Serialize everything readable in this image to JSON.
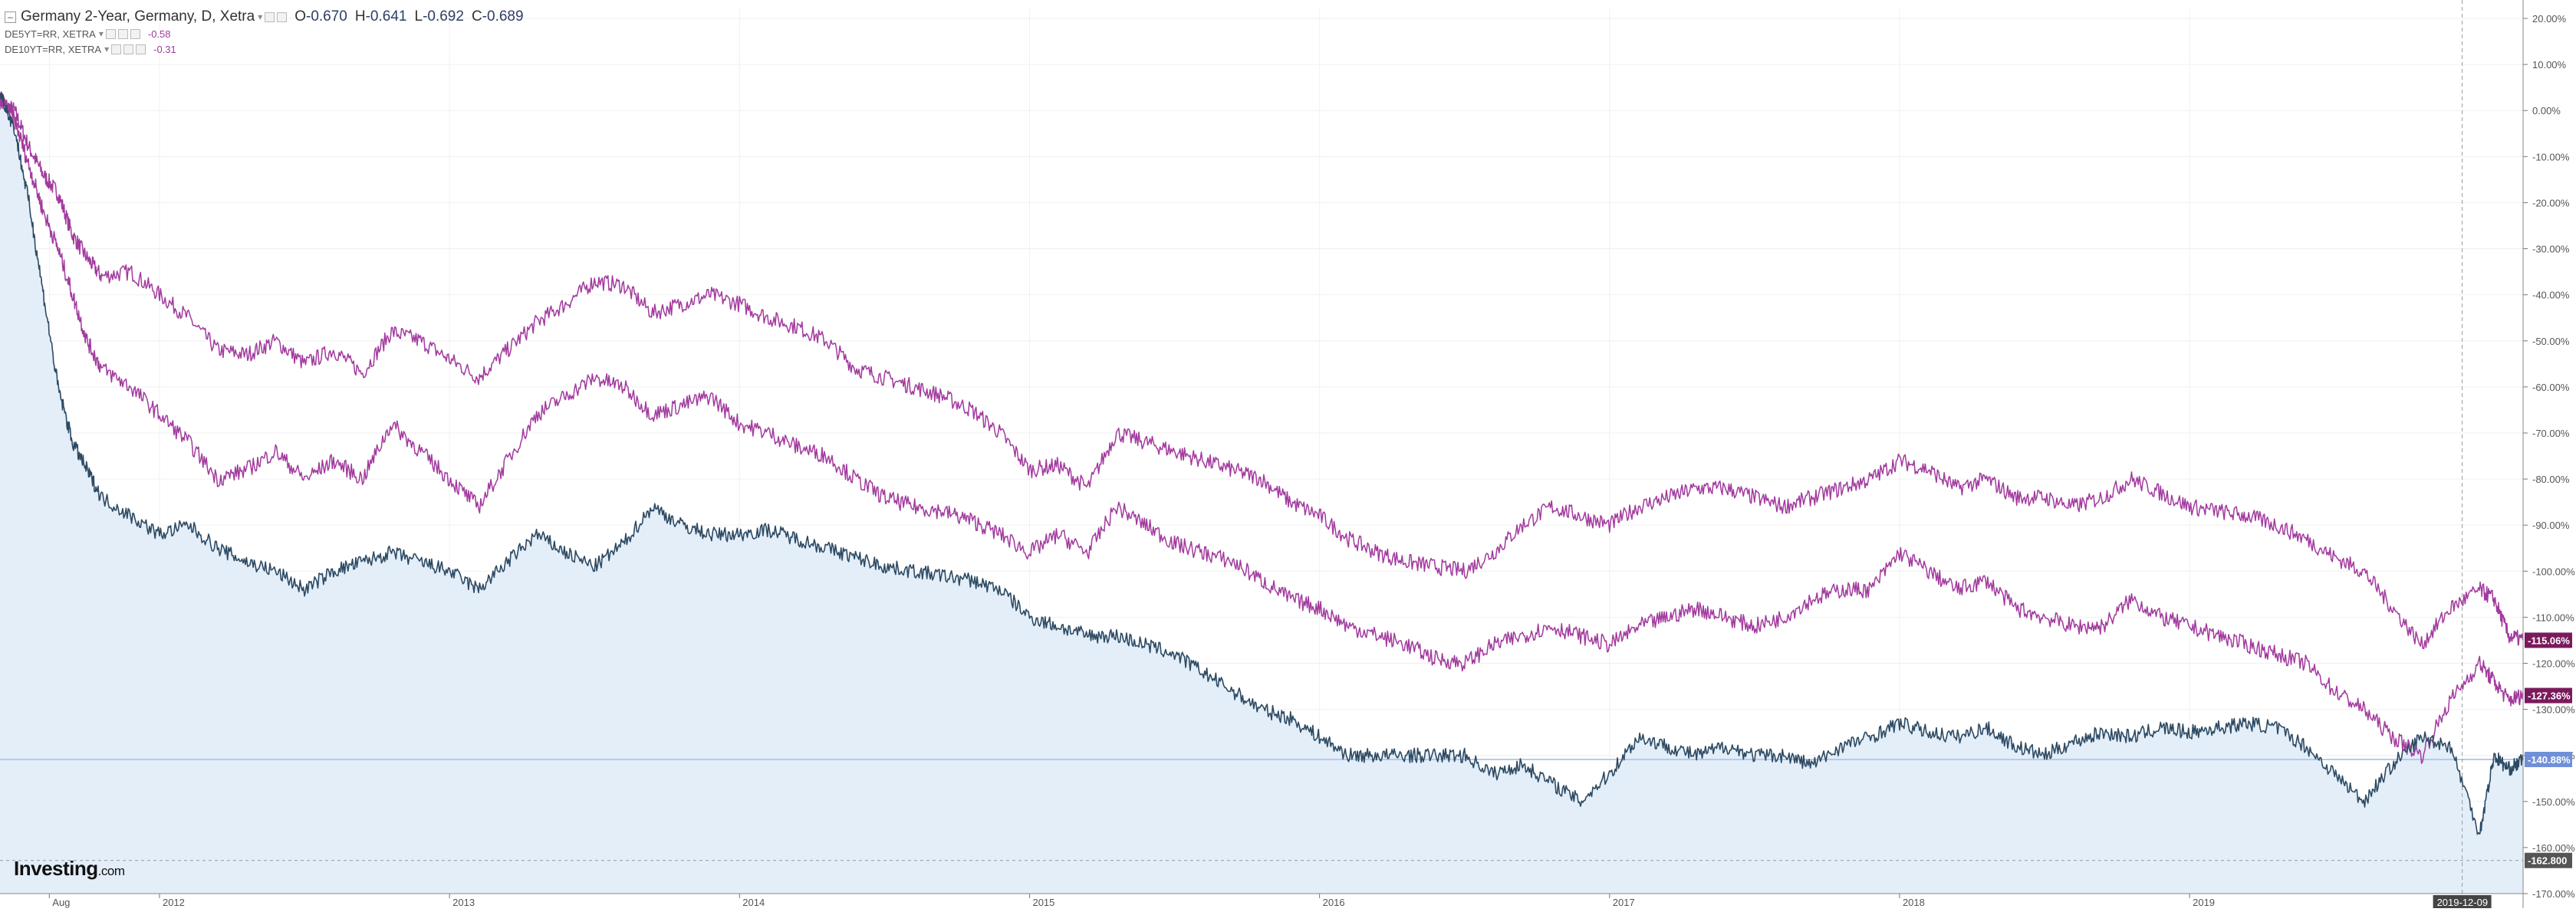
{
  "legend": {
    "title": "Germany 2-Year, Germany, D, Xetra",
    "ohlc": [
      {
        "label": "O",
        "value": "-0.670"
      },
      {
        "label": "H",
        "value": "-0.641"
      },
      {
        "label": "L",
        "value": "-0.692"
      },
      {
        "label": "C",
        "value": "-0.689"
      }
    ],
    "overlays": [
      {
        "name": "DE5YT=RR, XETRA",
        "value": "-0.58"
      },
      {
        "name": "DE10YT=RR, XETRA",
        "value": "-0.31"
      }
    ]
  },
  "logo": {
    "brand": "Investing",
    "suffix": ".com"
  },
  "colors": {
    "primary_line": "#2d4a63",
    "area_fill": "#e3eef9",
    "overlay_line": "#a23a9e",
    "overlay_tag": "#7a1a5c",
    "current_tag": "#6f8fd8",
    "current_line": "#b7c9ec",
    "low_tag": "#555555",
    "crosshair_tag": "#444444",
    "grid": "#f0f0f0"
  },
  "chart_data": {
    "type": "line",
    "ylim": [
      -170,
      22
    ],
    "xlim": [
      2011.45,
      2020.15
    ],
    "y_ticks": [
      20,
      10,
      0,
      -10,
      -20,
      -30,
      -40,
      -50,
      -60,
      -70,
      -80,
      -90,
      -100,
      -110,
      -120,
      -130,
      -140,
      -150,
      -160,
      -170
    ],
    "y_tick_labels": [
      "20.00%",
      "10.00%",
      "0.00%",
      "-10.00%",
      "-20.00%",
      "-30.00%",
      "-40.00%",
      "-50.00%",
      "-60.00%",
      "-70.00%",
      "-80.00%",
      "-90.00%",
      "-100.00%",
      "-110.00%",
      "-120.00%",
      "-130.00%",
      "-140.00%",
      "-150.00%",
      "-160.00%",
      "-170.00%"
    ],
    "x_ticks": [
      {
        "value": 2011.62,
        "label": "Aug"
      },
      {
        "value": 2012.0,
        "label": "2012"
      },
      {
        "value": 2013.0,
        "label": "2013"
      },
      {
        "value": 2014.0,
        "label": "2014"
      },
      {
        "value": 2015.0,
        "label": "2015"
      },
      {
        "value": 2016.0,
        "label": "2016"
      },
      {
        "value": 2017.0,
        "label": "2017"
      },
      {
        "value": 2018.0,
        "label": "2018"
      },
      {
        "value": 2019.0,
        "label": "2019"
      }
    ],
    "crosshair": {
      "x": 2019.94,
      "label": "2019-12-09"
    },
    "current_level": {
      "y": -140.88,
      "label": "-140.88%"
    },
    "low_level": {
      "y": -162.8,
      "label": "-162.800"
    },
    "series": [
      {
        "name": "DE10YT=RR, XETRA",
        "end_label": "-115.06%",
        "x": [
          2011.45,
          2011.5,
          2011.55,
          2011.6,
          2011.65,
          2011.7,
          2011.75,
          2011.8,
          2011.9,
          2012.0,
          2012.1,
          2012.2,
          2012.3,
          2012.4,
          2012.5,
          2012.6,
          2012.7,
          2012.8,
          2012.9,
          2013.0,
          2013.1,
          2013.2,
          2013.3,
          2013.4,
          2013.5,
          2013.6,
          2013.7,
          2013.8,
          2013.9,
          2014.0,
          2014.1,
          2014.2,
          2014.3,
          2014.4,
          2014.5,
          2014.6,
          2014.7,
          2014.8,
          2014.9,
          2015.0,
          2015.1,
          2015.2,
          2015.3,
          2015.4,
          2015.5,
          2015.6,
          2015.7,
          2015.8,
          2015.9,
          2016.0,
          2016.1,
          2016.2,
          2016.3,
          2016.4,
          2016.5,
          2016.6,
          2016.7,
          2016.8,
          2016.9,
          2017.0,
          2017.1,
          2017.2,
          2017.3,
          2017.4,
          2017.5,
          2017.6,
          2017.7,
          2017.8,
          2017.9,
          2018.0,
          2018.1,
          2018.2,
          2018.3,
          2018.4,
          2018.5,
          2018.6,
          2018.7,
          2018.8,
          2018.9,
          2019.0,
          2019.1,
          2019.2,
          2019.3,
          2019.4,
          2019.5,
          2019.6,
          2019.7,
          2019.8,
          2019.9,
          2020.0,
          2020.05,
          2020.1,
          2020.15
        ],
        "y": [
          2,
          0,
          -8,
          -14,
          -18,
          -27,
          -32,
          -36,
          -35,
          -40,
          -45,
          -52,
          -53,
          -50,
          -55,
          -52,
          -57,
          -48,
          -50,
          -54,
          -58,
          -52,
          -46,
          -42,
          -37,
          -38,
          -44,
          -42,
          -40,
          -42,
          -45,
          -47,
          -50,
          -56,
          -58,
          -60,
          -62,
          -65,
          -70,
          -78,
          -77,
          -82,
          -70,
          -72,
          -74,
          -76,
          -78,
          -80,
          -85,
          -88,
          -93,
          -96,
          -98,
          -99,
          -100,
          -96,
          -90,
          -86,
          -88,
          -90,
          -86,
          -84,
          -82,
          -82,
          -84,
          -86,
          -84,
          -82,
          -80,
          -76,
          -78,
          -82,
          -80,
          -84,
          -84,
          -86,
          -84,
          -80,
          -83,
          -86,
          -87,
          -88,
          -90,
          -93,
          -97,
          -100,
          -108,
          -116,
          -108,
          -104,
          -106,
          -114,
          -115
        ]
      },
      {
        "name": "DE5YT=RR, XETRA",
        "end_label": "-127.36%",
        "x": [
          2011.45,
          2011.5,
          2011.55,
          2011.6,
          2011.65,
          2011.7,
          2011.75,
          2011.8,
          2011.9,
          2012.0,
          2012.1,
          2012.2,
          2012.3,
          2012.4,
          2012.5,
          2012.6,
          2012.7,
          2012.8,
          2012.9,
          2013.0,
          2013.1,
          2013.2,
          2013.3,
          2013.4,
          2013.5,
          2013.6,
          2013.7,
          2013.8,
          2013.9,
          2014.0,
          2014.1,
          2014.2,
          2014.3,
          2014.4,
          2014.5,
          2014.6,
          2014.7,
          2014.8,
          2014.9,
          2015.0,
          2015.1,
          2015.2,
          2015.3,
          2015.4,
          2015.5,
          2015.6,
          2015.7,
          2015.8,
          2015.9,
          2016.0,
          2016.1,
          2016.2,
          2016.3,
          2016.4,
          2016.5,
          2016.6,
          2016.7,
          2016.8,
          2016.9,
          2017.0,
          2017.1,
          2017.2,
          2017.3,
          2017.4,
          2017.5,
          2017.6,
          2017.7,
          2017.8,
          2017.9,
          2018.0,
          2018.1,
          2018.2,
          2018.3,
          2018.4,
          2018.5,
          2018.6,
          2018.7,
          2018.8,
          2018.9,
          2019.0,
          2019.1,
          2019.2,
          2019.3,
          2019.4,
          2019.5,
          2019.6,
          2019.7,
          2019.8,
          2019.9,
          2020.0,
          2020.05,
          2020.1,
          2020.15
        ],
        "y": [
          3,
          -2,
          -12,
          -22,
          -30,
          -40,
          -50,
          -56,
          -60,
          -66,
          -72,
          -80,
          -78,
          -74,
          -80,
          -76,
          -80,
          -68,
          -74,
          -80,
          -86,
          -76,
          -66,
          -62,
          -58,
          -60,
          -66,
          -64,
          -62,
          -68,
          -70,
          -73,
          -75,
          -80,
          -84,
          -86,
          -87,
          -89,
          -92,
          -96,
          -92,
          -96,
          -86,
          -90,
          -94,
          -96,
          -98,
          -102,
          -106,
          -108,
          -112,
          -114,
          -116,
          -119,
          -120,
          -116,
          -114,
          -112,
          -114,
          -116,
          -112,
          -110,
          -108,
          -110,
          -112,
          -110,
          -106,
          -104,
          -104,
          -96,
          -100,
          -104,
          -102,
          -108,
          -110,
          -112,
          -112,
          -106,
          -110,
          -112,
          -114,
          -116,
          -118,
          -120,
          -126,
          -130,
          -136,
          -140,
          -128,
          -120,
          -124,
          -128,
          -127
        ]
      },
      {
        "name": "Germany 2-Year",
        "end_label": "-140.88%",
        "x": [
          2011.45,
          2011.5,
          2011.55,
          2011.6,
          2011.65,
          2011.7,
          2011.75,
          2011.8,
          2011.9,
          2012.0,
          2012.1,
          2012.2,
          2012.3,
          2012.4,
          2012.5,
          2012.6,
          2012.7,
          2012.8,
          2012.9,
          2013.0,
          2013.1,
          2013.2,
          2013.3,
          2013.4,
          2013.5,
          2013.6,
          2013.7,
          2013.8,
          2013.9,
          2014.0,
          2014.1,
          2014.2,
          2014.3,
          2014.4,
          2014.5,
          2014.6,
          2014.7,
          2014.8,
          2014.9,
          2015.0,
          2015.1,
          2015.2,
          2015.3,
          2015.4,
          2015.5,
          2015.6,
          2015.7,
          2015.8,
          2015.9,
          2016.0,
          2016.1,
          2016.2,
          2016.3,
          2016.4,
          2016.5,
          2016.6,
          2016.7,
          2016.8,
          2016.9,
          2017.0,
          2017.1,
          2017.2,
          2017.3,
          2017.4,
          2017.5,
          2017.6,
          2017.7,
          2017.8,
          2017.9,
          2018.0,
          2018.1,
          2018.2,
          2018.3,
          2018.4,
          2018.5,
          2018.6,
          2018.7,
          2018.8,
          2018.9,
          2019.0,
          2019.1,
          2019.2,
          2019.3,
          2019.4,
          2019.5,
          2019.6,
          2019.7,
          2019.8,
          2019.9,
          2020.0,
          2020.05,
          2020.1,
          2020.15
        ],
        "y": [
          4,
          -4,
          -20,
          -40,
          -60,
          -72,
          -78,
          -84,
          -88,
          -92,
          -90,
          -95,
          -98,
          -100,
          -104,
          -100,
          -98,
          -96,
          -98,
          -100,
          -104,
          -98,
          -92,
          -96,
          -99,
          -94,
          -86,
          -90,
          -92,
          -92,
          -91,
          -93,
          -95,
          -97,
          -99,
          -100,
          -101,
          -102,
          -104,
          -110,
          -112,
          -114,
          -114,
          -116,
          -118,
          -122,
          -126,
          -130,
          -132,
          -136,
          -140,
          -140,
          -140,
          -140,
          -140,
          -144,
          -142,
          -146,
          -150,
          -144,
          -136,
          -138,
          -140,
          -138,
          -140,
          -140,
          -142,
          -138,
          -136,
          -133,
          -135,
          -136,
          -134,
          -138,
          -140,
          -137,
          -135,
          -136,
          -134,
          -135,
          -134,
          -133,
          -134,
          -138,
          -144,
          -150,
          -142,
          -136,
          -138,
          -157,
          -140,
          -143,
          -141
        ]
      }
    ]
  }
}
